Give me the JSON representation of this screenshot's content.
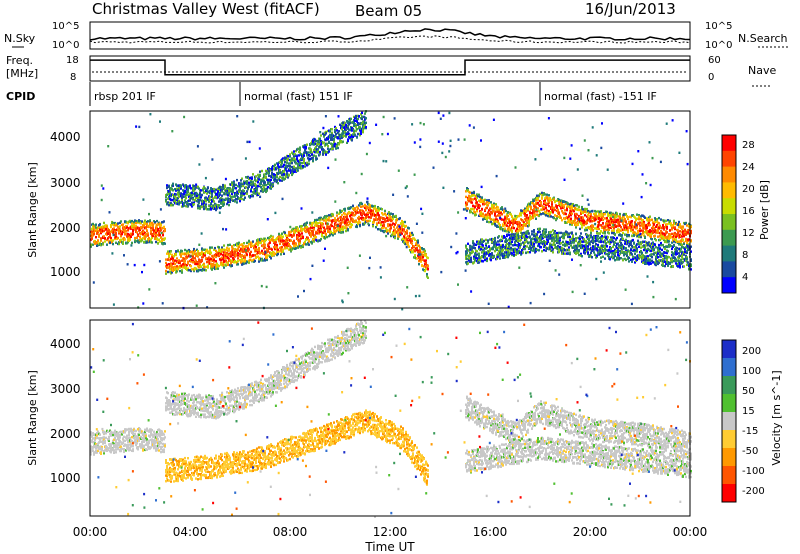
{
  "header": {
    "station": "Christmas Valley West (fitACF)",
    "beam": "Beam 05",
    "date": "16/Jun/2013"
  },
  "top_panel": {
    "left_label": "N.Sky",
    "left_ticks": [
      "10^5",
      "10^0"
    ],
    "right_label": "N.Search",
    "right_ticks": [
      "10^5",
      "10^0"
    ]
  },
  "freq_panel": {
    "left_label_1": "Freq.",
    "left_label_2": "[MHz]",
    "left_ticks": [
      "18",
      "8"
    ],
    "right_label": "Nave",
    "right_ticks": [
      "60",
      "0"
    ]
  },
  "cpid": {
    "label": "CPID",
    "segments": [
      {
        "text": "rbsp 201 IF",
        "start_hour": 0
      },
      {
        "text": "normal (fast) 151 IF",
        "start_hour": 6
      },
      {
        "text": "normal (fast) -151 IF",
        "start_hour": 18
      }
    ]
  },
  "power_panel": {
    "ylabel": "Slant Range [km]",
    "yticks": [
      "4000",
      "3000",
      "2000",
      "1000"
    ],
    "colorbar_label": "Power [dB]",
    "colorbar_ticks": [
      "28",
      "24",
      "20",
      "16",
      "12",
      "8",
      "4"
    ],
    "colorbar_colors": [
      "#ff0000",
      "#ff4400",
      "#ff8a00",
      "#ffbb00",
      "#c8dc00",
      "#7ac020",
      "#3c9a50",
      "#1f7a7a",
      "#1a4aa0",
      "#0000ff"
    ]
  },
  "velocity_panel": {
    "ylabel": "Slant Range [km]",
    "yticks": [
      "4000",
      "3000",
      "2000",
      "1000"
    ],
    "colorbar_label": "Velocity [m s^-1]",
    "colorbar_ticks": [
      "200",
      "100",
      "50",
      "15",
      "-15",
      "-50",
      "-100",
      "-200"
    ],
    "colorbar_colors": [
      "#1c2ec8",
      "#2f6fd0",
      "#3a9a5a",
      "#50c030",
      "#c8c8c8",
      "#ffcc33",
      "#ff9900",
      "#ff5500",
      "#ff0000"
    ]
  },
  "x_axis": {
    "label": "Time UT",
    "ticks": [
      "00:00",
      "04:00",
      "08:00",
      "12:00",
      "16:00",
      "20:00",
      "00:00"
    ]
  },
  "chart_data": {
    "type": "heatmap",
    "x_range_hours": [
      0,
      24
    ],
    "y_range_km": [
      180,
      4500
    ],
    "freq_mhz": [
      {
        "start_hour": 0,
        "end_hour": 3,
        "value": 17
      },
      {
        "start_hour": 3,
        "end_hour": 15,
        "value": 10
      },
      {
        "start_hour": 15,
        "end_hour": 24,
        "value": 17
      }
    ],
    "power_bands": [
      {
        "name": "band-a",
        "points": [
          [
            0,
            1800
          ],
          [
            1,
            1850
          ],
          [
            2,
            1900
          ],
          [
            3,
            1850
          ]
        ],
        "db": 25
      },
      {
        "name": "band-b",
        "points": [
          [
            3,
            1200
          ],
          [
            5,
            1300
          ],
          [
            7,
            1500
          ],
          [
            9,
            1900
          ],
          [
            11,
            2300
          ],
          [
            12.5,
            1900
          ],
          [
            13.5,
            1100
          ]
        ],
        "db": 24
      },
      {
        "name": "band-c",
        "points": [
          [
            3,
            2700
          ],
          [
            5,
            2600
          ],
          [
            7,
            3000
          ],
          [
            9,
            3700
          ],
          [
            11,
            4300
          ]
        ],
        "db": 10
      },
      {
        "name": "band-d",
        "points": [
          [
            15,
            2600
          ],
          [
            16,
            2300
          ],
          [
            17,
            2000
          ],
          [
            18,
            2500
          ],
          [
            20,
            2100
          ],
          [
            22,
            2000
          ],
          [
            24,
            1800
          ]
        ],
        "db": 24
      },
      {
        "name": "band-e",
        "points": [
          [
            15,
            1400
          ],
          [
            18,
            1700
          ],
          [
            21,
            1500
          ],
          [
            24,
            1300
          ]
        ],
        "db": 12
      }
    ],
    "velocity_bands": [
      {
        "name": "band-a",
        "points": [
          [
            0,
            1800
          ],
          [
            1,
            1850
          ],
          [
            2,
            1900
          ],
          [
            3,
            1850
          ]
        ],
        "velocity": 0
      },
      {
        "name": "band-b",
        "points": [
          [
            3,
            1200
          ],
          [
            5,
            1300
          ],
          [
            7,
            1500
          ],
          [
            9,
            1900
          ],
          [
            11,
            2300
          ],
          [
            12.5,
            1900
          ],
          [
            13.5,
            1100
          ]
        ],
        "velocity": -40
      },
      {
        "name": "band-c",
        "points": [
          [
            3,
            2700
          ],
          [
            5,
            2600
          ],
          [
            7,
            3000
          ],
          [
            9,
            3700
          ],
          [
            11,
            4300
          ]
        ],
        "velocity": 0
      },
      {
        "name": "band-d",
        "points": [
          [
            15,
            2600
          ],
          [
            16,
            2300
          ],
          [
            17,
            2000
          ],
          [
            18,
            2500
          ],
          [
            20,
            2100
          ],
          [
            22,
            2000
          ],
          [
            24,
            1800
          ]
        ],
        "velocity": 0
      },
      {
        "name": "band-e",
        "points": [
          [
            15,
            1400
          ],
          [
            18,
            1700
          ],
          [
            21,
            1500
          ],
          [
            24,
            1300
          ]
        ],
        "velocity": 0
      }
    ]
  }
}
